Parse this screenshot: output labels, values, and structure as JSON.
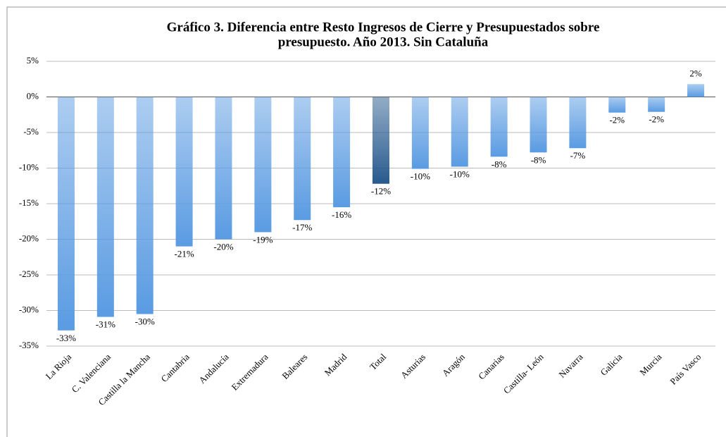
{
  "chart_data": {
    "type": "bar",
    "title": "Gráfico 3. Diferencia entre Resto Ingresos de Cierre y Presupuestados sobre",
    "subtitle": "presupuesto.  Año 2013. Sin Cataluña",
    "categories": [
      "La Rioja",
      "C. Valenciana",
      "Castilla la Mancha",
      "Cantabria",
      "Andalucía",
      "Extremadura",
      "Baleares",
      "Madrid",
      "Total",
      "Asturias",
      "Aragón",
      "Canarias",
      "Castilla- León",
      "Navarra",
      "Galicia",
      "Murcia",
      "País Vasco"
    ],
    "values": [
      -32.8,
      -30.9,
      -30.5,
      -21,
      -20,
      -19,
      -17.3,
      -15.5,
      -12.2,
      -10.1,
      -9.8,
      -8.4,
      -7.8,
      -7.2,
      -2.2,
      -2.1,
      1.8
    ],
    "value_labels": [
      "-33%",
      "-31%",
      "-30%",
      "-21%",
      "-20%",
      "-19%",
      "-17%",
      "-16%",
      "-12%",
      "-10%",
      "-10%",
      "-8%",
      "-8%",
      "-7%",
      "-2%",
      "-2%",
      "2%"
    ],
    "colors": [
      "#5a9be2",
      "#5a9be2",
      "#5a9be2",
      "#5a9be2",
      "#5a9be2",
      "#5a9be2",
      "#5a9be2",
      "#5a9be2",
      "#285a8e",
      "#5a9be2",
      "#5a9be2",
      "#5a9be2",
      "#5a9be2",
      "#5a9be2",
      "#5a9be2",
      "#5a9be2",
      "#5a9be2"
    ],
    "ylim": [
      -35,
      5
    ],
    "yticks": [
      {
        "value": 5,
        "label": "5%"
      },
      {
        "value": 0,
        "label": "0%"
      },
      {
        "value": -5,
        "label": "-5%"
      },
      {
        "value": -10,
        "label": "-10%"
      },
      {
        "value": -15,
        "label": "-15%"
      },
      {
        "value": -20,
        "label": "-20%"
      },
      {
        "value": -25,
        "label": "-25%"
      },
      {
        "value": -30,
        "label": "-30%"
      },
      {
        "value": -35,
        "label": "-35%"
      }
    ],
    "grid": true
  }
}
